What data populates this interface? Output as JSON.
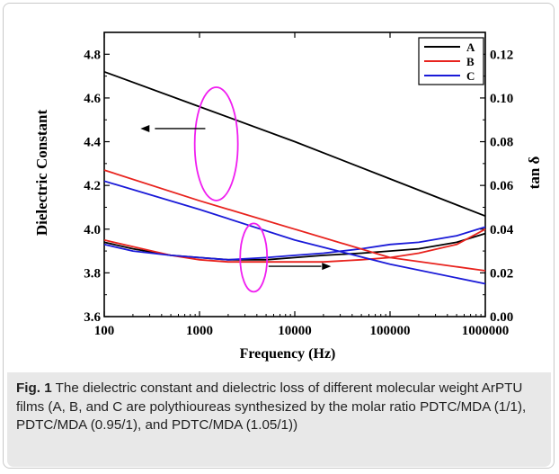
{
  "chart_data": {
    "type": "line",
    "xlabel": "Frequency (Hz)",
    "ylabel_left": "Dielectric Constant",
    "ylabel_right": "tan δ",
    "x_scale": "log",
    "xlim": [
      100,
      1000000
    ],
    "x_ticks": [
      "100",
      "1000",
      "10000",
      "100000",
      "1000000"
    ],
    "ylim_left": [
      3.6,
      4.9
    ],
    "y_ticks_left": [
      "3.6",
      "3.8",
      "4.0",
      "4.2",
      "4.4",
      "4.6",
      "4.8"
    ],
    "ylim_right": [
      0.0,
      0.13
    ],
    "y_ticks_right": [
      "0.00",
      "0.02",
      "0.04",
      "0.06",
      "0.08",
      "0.10",
      "0.12"
    ],
    "legend": [
      "A",
      "B",
      "C"
    ],
    "legend_position": "top-right",
    "colors": {
      "A": "#000000",
      "B": "#e8231e",
      "C": "#1a1ad8",
      "annotation": "#f01ef0"
    },
    "series": [
      {
        "name": "A",
        "axis": "left",
        "quantity": "dielectric constant",
        "x": [
          100,
          1000,
          10000,
          100000,
          1000000
        ],
        "y": [
          4.72,
          4.56,
          4.4,
          4.23,
          4.06
        ]
      },
      {
        "name": "B",
        "axis": "left",
        "quantity": "dielectric constant",
        "x": [
          100,
          1000,
          10000,
          100000,
          1000000
        ],
        "y": [
          4.27,
          4.13,
          4.0,
          3.87,
          3.81
        ]
      },
      {
        "name": "C",
        "axis": "left",
        "quantity": "dielectric constant",
        "x": [
          100,
          1000,
          10000,
          100000,
          1000000
        ],
        "y": [
          4.22,
          4.09,
          3.95,
          3.84,
          3.75
        ]
      },
      {
        "name": "A",
        "axis": "right",
        "quantity": "tan δ",
        "x": [
          100,
          200,
          500,
          1000,
          2000,
          5000,
          10000,
          20000,
          50000,
          100000,
          200000,
          500000,
          1000000
        ],
        "y": [
          0.034,
          0.031,
          0.028,
          0.027,
          0.026,
          0.026,
          0.027,
          0.028,
          0.029,
          0.03,
          0.031,
          0.034,
          0.038
        ]
      },
      {
        "name": "B",
        "axis": "right",
        "quantity": "tan δ",
        "x": [
          100,
          200,
          500,
          1000,
          2000,
          5000,
          10000,
          20000,
          50000,
          100000,
          200000,
          500000,
          1000000
        ],
        "y": [
          0.035,
          0.032,
          0.028,
          0.026,
          0.025,
          0.025,
          0.025,
          0.025,
          0.026,
          0.027,
          0.029,
          0.033,
          0.04
        ]
      },
      {
        "name": "C",
        "axis": "right",
        "quantity": "tan δ",
        "x": [
          100,
          200,
          500,
          1000,
          2000,
          5000,
          10000,
          20000,
          50000,
          100000,
          200000,
          500000,
          1000000
        ],
        "y": [
          0.033,
          0.03,
          0.028,
          0.027,
          0.026,
          0.027,
          0.028,
          0.029,
          0.031,
          0.033,
          0.034,
          0.037,
          0.041
        ]
      }
    ]
  },
  "caption": {
    "label": "Fig. 1",
    "text": "The dielectric constant and dielectric loss of different molecular weight ArPTU films (A, B, and C are polythioureas synthesized by the molar ratio PDTC/MDA (1/1), PDTC/MDA (0.95/1), and PDTC/MDA (1.05/1))"
  }
}
